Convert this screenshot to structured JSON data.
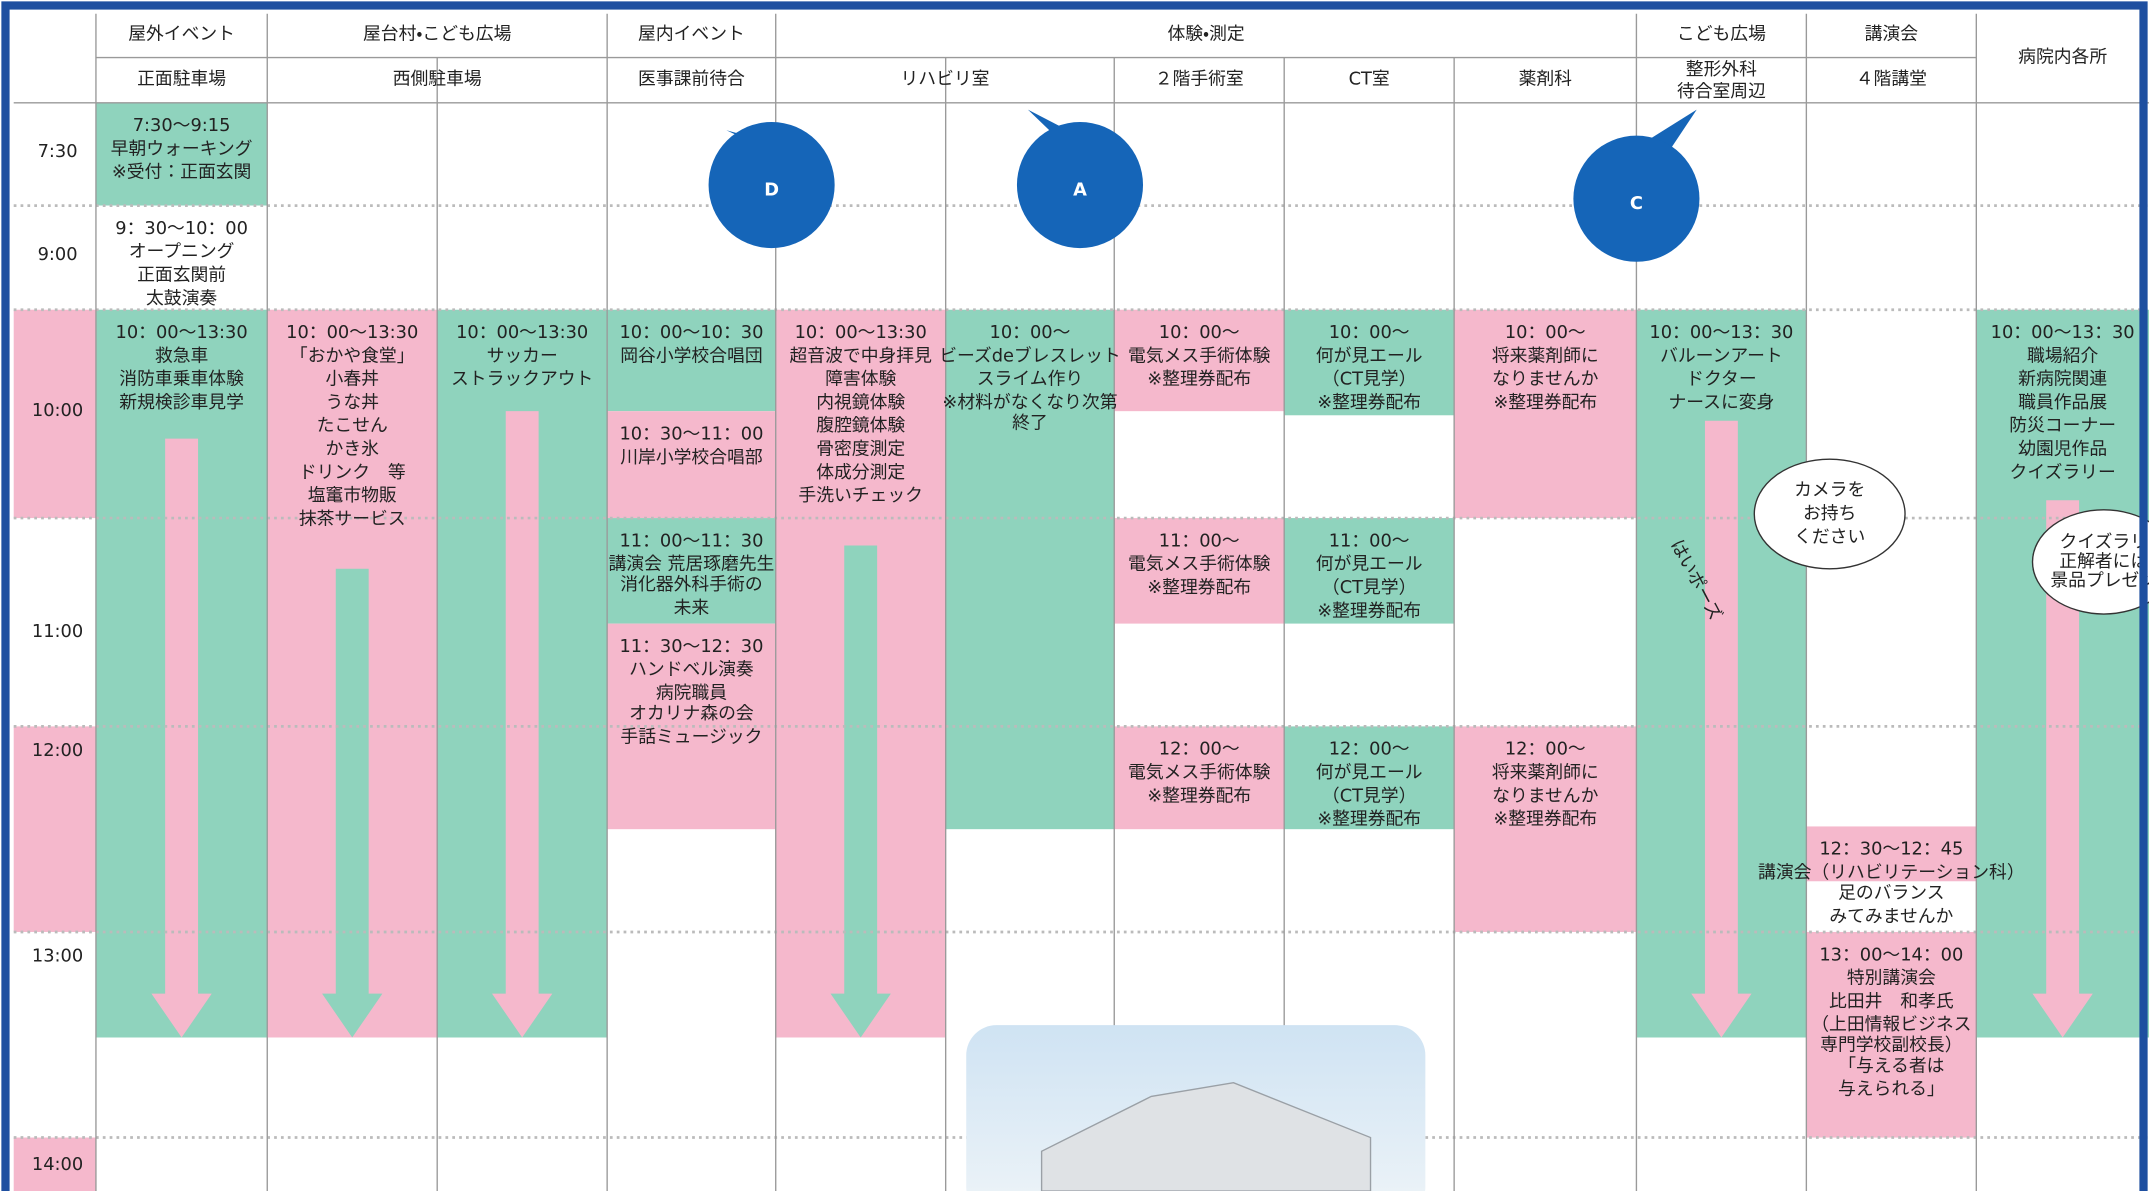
{
  "header": {
    "groups": [
      "屋外イベント",
      "屋台村・こども広場",
      "屋内イベント",
      "体験・測定",
      "こども広場",
      "講演会",
      "病院内各所"
    ],
    "places": [
      [
        "正面駐車場"
      ],
      [
        "西側駐車場"
      ],
      [
        "医事課前待合"
      ],
      [
        "リハビリ室"
      ],
      [
        "２階手術室"
      ],
      [
        "CT室"
      ],
      [
        "薬剤科"
      ],
      [
        "整形外科",
        "待合室周辺"
      ],
      [
        "４階講堂"
      ]
    ]
  },
  "times": [
    "7:30",
    "9:00",
    "10:00",
    "11:00",
    "12:00",
    "13:00",
    "14:00"
  ],
  "blocks": [
    {
      "lines": [
        "7:30〜9:15",
        "早朝ウォーキング",
        "※受付：正面玄関"
      ]
    },
    {
      "lines": [
        "9：30〜10：00",
        "オープニング",
        "正面玄関前",
        "太鼓演奏"
      ]
    },
    {
      "lines": [
        "10：00〜13:30",
        "救急車",
        "消防車乗車体験",
        "新規検診車見学"
      ]
    },
    {
      "lines": [
        "10：00〜13:30",
        "「おかや食堂」",
        "小春丼",
        "うな丼",
        "たこせん",
        "かき氷",
        "ドリンク　等",
        "塩竃市物販",
        "抹茶サービス"
      ]
    },
    {
      "lines": [
        "10：00〜13:30",
        "サッカー",
        "ストラックアウト"
      ]
    },
    {
      "lines": [
        "10：00〜10：30",
        "岡谷小学校合唱団"
      ]
    },
    {
      "lines": [
        "10：30〜11：00",
        "川岸小学校合唱部"
      ]
    },
    {
      "lines": [
        "11：00〜11：30",
        "講演会 荒居琢磨先生",
        "消化器外科手術の",
        "未来"
      ]
    },
    {
      "lines": [
        "11：30〜12：30",
        "ハンドベル演奏",
        "病院職員",
        "オカリナ森の会",
        "手話ミュージック"
      ]
    },
    {
      "lines": [
        "10：00〜13:30",
        "超音波で中身拝見",
        "障害体験",
        "内視鏡体験",
        "腹腔鏡体験",
        "骨密度測定",
        "体成分測定",
        "手洗いチェック"
      ]
    },
    {
      "lines": [
        "10：00〜",
        "ビーズdeブレスレット",
        "スライム作り",
        "※材料がなくなり次第",
        "終了"
      ]
    },
    {
      "lines": [
        "10：00〜",
        "電気メス手術体験",
        "※整理券配布"
      ]
    },
    {
      "lines": [
        "11：00〜",
        "電気メス手術体験",
        "※整理券配布"
      ]
    },
    {
      "lines": [
        "12：00〜",
        "電気メス手術体験",
        "※整理券配布"
      ]
    },
    {
      "lines": [
        "10：00〜",
        "何が見エール",
        "（CT見学）",
        "※整理券配布"
      ]
    },
    {
      "lines": [
        "11：00〜",
        "何が見エール",
        "（CT見学）",
        "※整理券配布"
      ]
    },
    {
      "lines": [
        "12：00〜",
        "何が見エール",
        "（CT見学）",
        "※整理券配布"
      ]
    },
    {
      "lines": [
        "10：00〜",
        "将来薬剤師に",
        "なりませんか",
        "※整理券配布"
      ]
    },
    {
      "lines": [
        "12：00〜",
        "将来薬剤師に",
        "なりませんか",
        "※整理券配布"
      ]
    },
    {
      "lines": [
        "10：00〜13：30",
        "バルーンアート",
        "ドクター",
        "ナースに変身"
      ]
    },
    {
      "lines": [
        "12：30〜12：45",
        "講演会（リハビリテーション科）",
        "足のバランス",
        "みてみませんか"
      ]
    },
    {
      "lines": [
        "13：00〜14：00",
        "特別講演会",
        "比田井　和孝氏",
        "（上田情報ビジネス",
        "専門学校副校長）",
        "「与える者は",
        "与えられる」"
      ]
    },
    {
      "lines": [
        "10：00〜13：30",
        "職場紹介",
        "新病院関連",
        "職員作品展",
        "防災コーナー",
        "幼園児作品",
        "クイズラリー"
      ]
    }
  ],
  "callouts": {
    "letters": [
      "D",
      "A",
      "C"
    ],
    "bubbles": [
      [
        "カメラを",
        "お持ち",
        "ください"
      ],
      [
        "クイズラリ",
        "正解者には",
        "景品プレゼン"
      ]
    ],
    "pose": "はいポーズ"
  }
}
